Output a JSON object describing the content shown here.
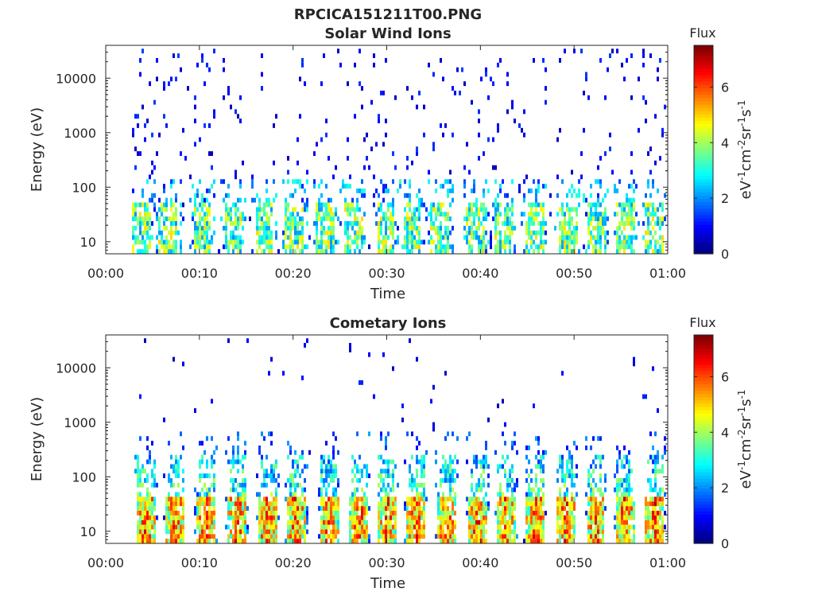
{
  "figure": {
    "title": "RPCICA151211T00.PNG"
  },
  "chart_data": [
    {
      "type": "heatmap",
      "title": "Solar Wind Ions",
      "xlabel": "Time",
      "ylabel": "Energy (eV)",
      "x_ticks": [
        "00:00",
        "00:10",
        "00:20",
        "00:30",
        "00:40",
        "00:50",
        "01:00"
      ],
      "x_range_minutes": [
        0,
        60
      ],
      "y_scale": "log",
      "y_ticks": [
        "10",
        "100",
        "1000",
        "10000"
      ],
      "y_tick_values": [
        10,
        100,
        1000,
        10000
      ],
      "y_range": [
        6,
        40000
      ],
      "colorbar": {
        "title": "Flux",
        "label": "eV-1cm-2sr-1s-1",
        "ticks": [
          "0",
          "2",
          "4",
          "6"
        ],
        "range": [
          0,
          7.5
        ]
      },
      "description_bursts_minutes": [
        3.8,
        6.6,
        10.2,
        13.5,
        16.8,
        20.0,
        23.4,
        26.3,
        29.8,
        32.6,
        35.6,
        39.4,
        42.4,
        45.6,
        49.2,
        52.3,
        55.4,
        58.5
      ],
      "peak_flux": 5
    },
    {
      "type": "heatmap",
      "title": "Cometary Ions",
      "xlabel": "Time",
      "ylabel": "Energy (eV)",
      "x_ticks": [
        "00:00",
        "00:10",
        "00:20",
        "00:30",
        "00:40",
        "00:50",
        "01:00"
      ],
      "x_range_minutes": [
        0,
        60
      ],
      "y_scale": "log",
      "y_ticks": [
        "10",
        "100",
        "1000",
        "10000"
      ],
      "y_tick_values": [
        10,
        100,
        1000,
        10000
      ],
      "y_range": [
        6,
        40000
      ],
      "colorbar": {
        "title": "Flux",
        "label": "eV-1cm-2sr-1s-1",
        "ticks": [
          "0",
          "2",
          "4",
          "6"
        ],
        "range": [
          0,
          7.5
        ]
      },
      "description_bursts_minutes": [
        4.2,
        7.3,
        10.6,
        13.9,
        17.2,
        20.2,
        23.7,
        26.9,
        29.9,
        33.0,
        36.3,
        39.6,
        42.6,
        45.8,
        49.1,
        52.2,
        55.3,
        58.5
      ],
      "peak_flux": 7
    }
  ]
}
